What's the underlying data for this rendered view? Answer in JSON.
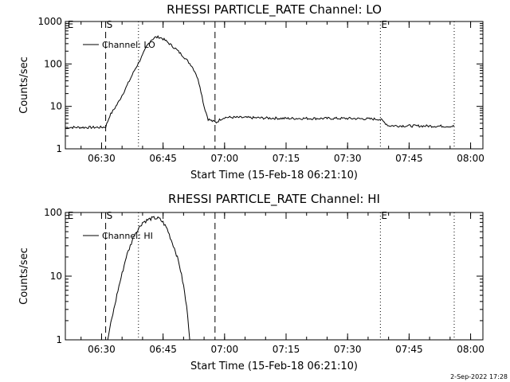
{
  "timestamp": "2-Sep-2022 17:28",
  "chart_data": [
    {
      "type": "line",
      "title": "RHESSI PARTICLE_RATE Channel: LO",
      "xlabel": "Start Time (15-Feb-18 06:21:10)",
      "ylabel": "Counts/sec",
      "yscale": "log",
      "ylim": [
        1,
        1000
      ],
      "xlim": [
        "06:21:10",
        "08:03:00"
      ],
      "x_ticks": [
        "06:30",
        "06:45",
        "07:00",
        "07:15",
        "07:30",
        "07:45",
        "08:00"
      ],
      "y_ticks": [
        "1",
        "10",
        "100",
        "1000"
      ],
      "legend": "Channel: LO",
      "legend_position": "top-left",
      "marker_labels": [
        {
          "text": "E",
          "time": "06:21:30"
        },
        {
          "text": "S",
          "time": "06:31:00"
        },
        {
          "text": "E",
          "time": "07:38:00"
        }
      ],
      "dashed_lines": [
        "06:31:00",
        "06:57:40"
      ],
      "dotted_lines": [
        "06:39:00",
        "07:38:00",
        "07:56:00"
      ],
      "series": [
        {
          "x": [
            "06:21:10",
            "06:30:00",
            "06:31:00",
            "06:32:00",
            "06:34:00",
            "06:36:00",
            "06:38:00",
            "06:40:00",
            "06:41:00",
            "06:42:00",
            "06:43:00",
            "06:44:00",
            "06:45:00",
            "06:46:00",
            "06:48:00",
            "06:50:00",
            "06:52:00",
            "06:53:00",
            "06:54:00",
            "06:55:00",
            "06:56:00",
            "06:57:00",
            "06:58:00",
            "06:59:00",
            "07:00:00",
            "07:02:00",
            "07:15:00",
            "07:30:00",
            "07:38:00",
            "07:40:00",
            "07:56:00"
          ],
          "y": [
            3.2,
            3.2,
            3.3,
            6,
            12,
            28,
            70,
            160,
            260,
            360,
            420,
            430,
            390,
            330,
            230,
            150,
            90,
            60,
            30,
            10,
            5,
            4.5,
            4.2,
            5,
            5.5,
            5.5,
            5.2,
            5.2,
            5.0,
            3.5,
            3.4
          ]
        }
      ]
    },
    {
      "type": "line",
      "title": "RHESSI PARTICLE_RATE Channel: HI",
      "xlabel": "Start Time (15-Feb-18 06:21:10)",
      "ylabel": "Counts/sec",
      "yscale": "log",
      "ylim": [
        1,
        100
      ],
      "xlim": [
        "06:21:10",
        "08:03:00"
      ],
      "x_ticks": [
        "06:30",
        "06:45",
        "07:00",
        "07:15",
        "07:30",
        "07:45",
        "08:00"
      ],
      "y_ticks": [
        "1",
        "10",
        "100"
      ],
      "legend": "Channel: HI",
      "legend_position": "top-left",
      "marker_labels": [
        {
          "text": "E",
          "time": "06:21:30"
        },
        {
          "text": "S",
          "time": "06:31:00"
        },
        {
          "text": "E",
          "time": "07:38:00"
        }
      ],
      "dashed_lines": [
        "06:31:00",
        "06:57:40"
      ],
      "dotted_lines": [
        "06:39:00",
        "07:38:00",
        "07:56:00"
      ],
      "series": [
        {
          "x": [
            "06:31:30",
            "06:32:00",
            "06:34:00",
            "06:36:00",
            "06:38:00",
            "06:40:00",
            "06:42:00",
            "06:43:00",
            "06:44:00",
            "06:45:00",
            "06:46:00",
            "06:48:00",
            "06:49:00",
            "06:50:00",
            "06:51:00",
            "06:51:30"
          ],
          "y": [
            1.0,
            1.5,
            6,
            20,
            45,
            70,
            80,
            82,
            80,
            70,
            55,
            25,
            15,
            7,
            2.5,
            1.0
          ]
        }
      ]
    }
  ]
}
